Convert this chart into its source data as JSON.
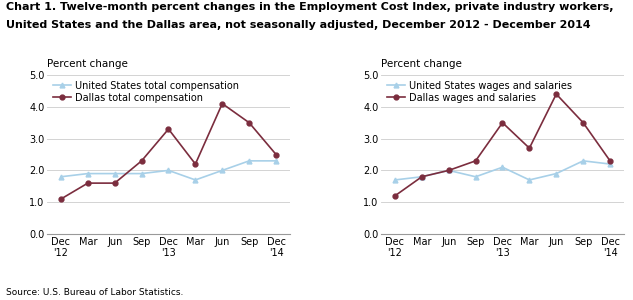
{
  "title_line1": "Chart 1. Twelve-month percent changes in the Employment Cost Index, private industry workers,",
  "title_line2": "United States and the Dallas area, not seasonally adjusted, December 2012 - December 2014",
  "source": "Source: U.S. Bureau of Labor Statistics.",
  "x_labels": [
    "Dec\n'12",
    "Mar",
    "Jun",
    "Sep",
    "Dec\n'13",
    "Mar",
    "Jun",
    "Sep",
    "Dec\n'14"
  ],
  "ylabel": "Percent change",
  "ylim": [
    0.0,
    5.0
  ],
  "yticks": [
    0.0,
    1.0,
    2.0,
    3.0,
    4.0,
    5.0
  ],
  "left_us_total_comp": [
    1.8,
    1.9,
    1.9,
    1.9,
    2.0,
    1.7,
    2.0,
    2.3,
    2.3
  ],
  "left_dallas_total_comp": [
    1.1,
    1.6,
    1.6,
    2.3,
    3.3,
    2.2,
    4.1,
    3.5,
    2.5
  ],
  "right_us_wages_sal": [
    1.7,
    1.8,
    2.0,
    1.8,
    2.1,
    1.7,
    1.9,
    2.3,
    2.2
  ],
  "right_dallas_wages_sal": [
    1.2,
    1.8,
    2.0,
    2.3,
    3.5,
    2.7,
    4.4,
    3.5,
    2.3
  ],
  "color_us": "#a8d0e8",
  "color_dallas": "#7B2D3E",
  "left_legend": [
    "United States total compensation",
    "Dallas total compensation"
  ],
  "right_legend": [
    "United States wages and salaries",
    "Dallas wages and salaries"
  ],
  "title_fontsize": 8.0,
  "axis_label_fontsize": 7.5,
  "tick_fontsize": 7.0,
  "legend_fontsize": 7.0
}
